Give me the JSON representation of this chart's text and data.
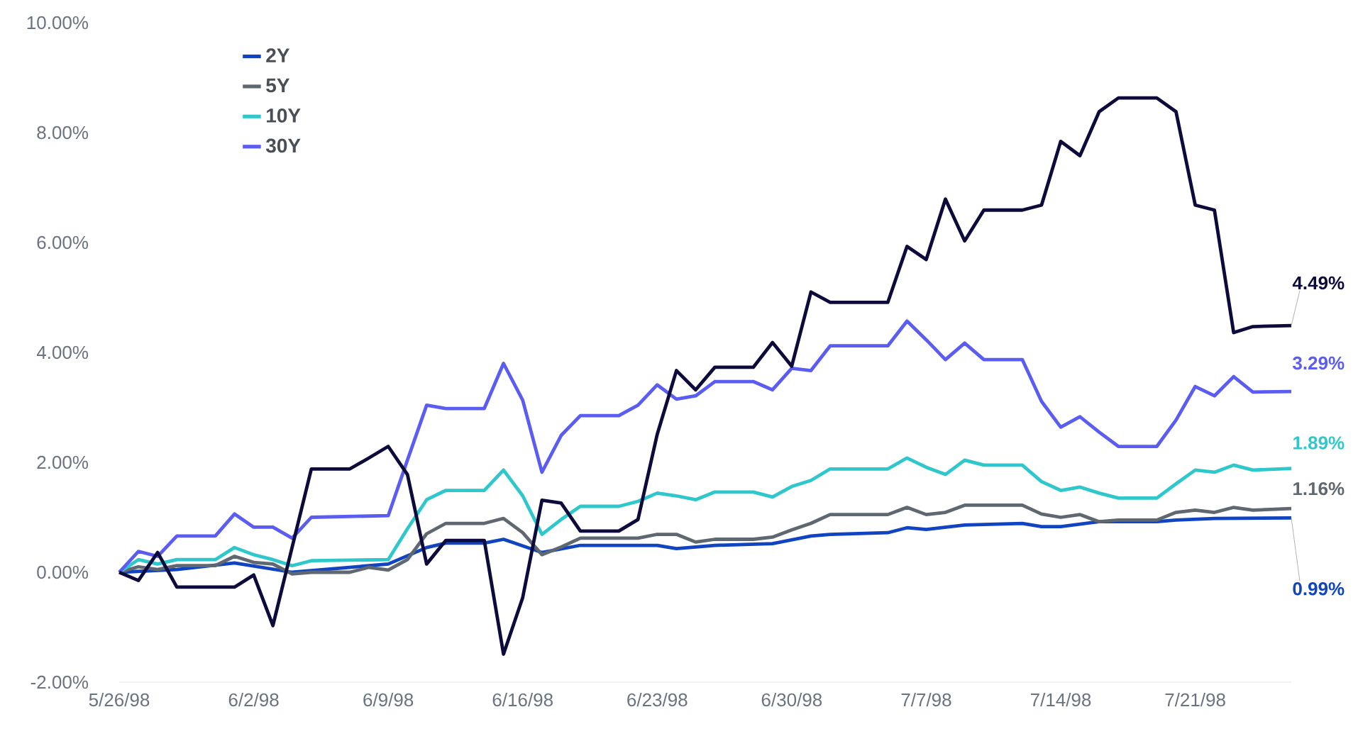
{
  "chart_data": {
    "type": "line",
    "xlim": [
      "1998-05-26",
      "1998-07-26"
    ],
    "xticks": [
      {
        "value": "1998-05-26",
        "label": "5/26/98"
      },
      {
        "value": "1998-06-02",
        "label": "6/2/98"
      },
      {
        "value": "1998-06-09",
        "label": "6/9/98"
      },
      {
        "value": "1998-06-16",
        "label": "6/16/98"
      },
      {
        "value": "1998-06-23",
        "label": "6/23/98"
      },
      {
        "value": "1998-06-30",
        "label": "6/30/98"
      },
      {
        "value": "1998-07-07",
        "label": "7/7/98"
      },
      {
        "value": "1998-07-14",
        "label": "7/14/98"
      },
      {
        "value": "1998-07-21",
        "label": "7/21/98"
      }
    ],
    "ylim": [
      -2,
      10
    ],
    "yticks": [
      {
        "value": -2,
        "label": "-2.00%"
      },
      {
        "value": 0,
        "label": "0.00%"
      },
      {
        "value": 2,
        "label": "2.00%"
      },
      {
        "value": 4,
        "label": "4.00%"
      },
      {
        "value": 6,
        "label": "6.00%"
      },
      {
        "value": 8,
        "label": "8.00%"
      },
      {
        "value": 10,
        "label": "10.00%"
      }
    ],
    "legend": "top left",
    "series": [
      {
        "name": "2Y",
        "color": "#1044c0",
        "x": [
          "1998-05-26",
          "1998-05-29",
          "1998-06-01",
          "1998-06-04",
          "1998-06-09",
          "1998-06-11",
          "1998-06-12",
          "1998-06-14",
          "1998-06-15",
          "1998-06-17",
          "1998-06-19",
          "1998-06-23",
          "1998-06-24",
          "1998-06-26",
          "1998-06-29",
          "1998-07-01",
          "1998-07-02",
          "1998-07-05",
          "1998-07-06",
          "1998-07-07",
          "1998-07-09",
          "1998-07-12",
          "1998-07-13",
          "1998-07-14",
          "1998-07-16",
          "1998-07-19",
          "1998-07-20",
          "1998-07-22",
          "1998-07-26"
        ],
        "values": [
          0,
          0.05,
          0.17,
          0,
          0.15,
          0.45,
          0.53,
          0.53,
          0.6,
          0.36,
          0.49,
          0.49,
          0.43,
          0.49,
          0.52,
          0.66,
          0.69,
          0.72,
          0.81,
          0.78,
          0.86,
          0.89,
          0.83,
          0.83,
          0.92,
          0.92,
          0.95,
          0.98,
          0.99
        ],
        "value_labels": [
          null,
          null,
          null,
          null,
          null,
          null,
          null,
          null,
          null,
          null,
          null,
          null,
          null,
          null,
          null,
          null,
          null,
          null,
          null,
          null,
          null,
          null,
          null,
          null,
          null,
          null,
          null,
          null,
          "0.99%"
        ]
      },
      {
        "name": "5Y",
        "color": "#5f6770",
        "x": [
          "1998-05-26",
          "1998-05-27",
          "1998-05-28",
          "1998-05-29",
          "1998-05-31",
          "1998-06-01",
          "1998-06-02",
          "1998-06-03",
          "1998-06-04",
          "1998-06-05",
          "1998-06-07",
          "1998-06-08",
          "1998-06-09",
          "1998-06-10",
          "1998-06-11",
          "1998-06-12",
          "1998-06-14",
          "1998-06-15",
          "1998-06-16",
          "1998-06-17",
          "1998-06-18",
          "1998-06-19",
          "1998-06-22",
          "1998-06-23",
          "1998-06-24",
          "1998-06-25",
          "1998-06-26",
          "1998-06-28",
          "1998-06-29",
          "1998-06-30",
          "1998-07-01",
          "1998-07-02",
          "1998-07-05",
          "1998-07-06",
          "1998-07-07",
          "1998-07-08",
          "1998-07-09",
          "1998-07-12",
          "1998-07-13",
          "1998-07-14",
          "1998-07-15",
          "1998-07-16",
          "1998-07-17",
          "1998-07-19",
          "1998-07-20",
          "1998-07-21",
          "1998-07-22",
          "1998-07-23",
          "1998-07-24",
          "1998-07-26"
        ],
        "values": [
          0,
          0.1,
          0.05,
          0.12,
          0.12,
          0.29,
          0.18,
          0.15,
          -0.03,
          0,
          0,
          0.09,
          0.04,
          0.23,
          0.7,
          0.89,
          0.89,
          0.98,
          0.72,
          0.32,
          0.46,
          0.62,
          0.62,
          0.69,
          0.69,
          0.55,
          0.6,
          0.6,
          0.64,
          0.77,
          0.89,
          1.05,
          1.05,
          1.18,
          1.05,
          1.09,
          1.22,
          1.22,
          1.06,
          1.0,
          1.05,
          0.92,
          0.95,
          0.95,
          1.09,
          1.13,
          1.09,
          1.18,
          1.13,
          1.16
        ],
        "value_labels": [
          null,
          null,
          null,
          null,
          null,
          null,
          null,
          null,
          null,
          null,
          null,
          null,
          null,
          null,
          null,
          null,
          null,
          null,
          null,
          null,
          null,
          null,
          null,
          null,
          null,
          null,
          null,
          null,
          null,
          null,
          null,
          null,
          null,
          null,
          null,
          null,
          null,
          null,
          null,
          null,
          null,
          null,
          null,
          null,
          null,
          null,
          null,
          null,
          null,
          "1.16%"
        ]
      },
      {
        "name": "10Y",
        "color": "#2ec8cc",
        "x": [
          "1998-05-26",
          "1998-05-27",
          "1998-05-28",
          "1998-05-29",
          "1998-05-31",
          "1998-06-01",
          "1998-06-02",
          "1998-06-03",
          "1998-06-04",
          "1998-06-05",
          "1998-06-09",
          "1998-06-10",
          "1998-06-11",
          "1998-06-12",
          "1998-06-14",
          "1998-06-15",
          "1998-06-16",
          "1998-06-17",
          "1998-06-18",
          "1998-06-19",
          "1998-06-21",
          "1998-06-22",
          "1998-06-23",
          "1998-06-24",
          "1998-06-25",
          "1998-06-26",
          "1998-06-28",
          "1998-06-29",
          "1998-06-30",
          "1998-07-01",
          "1998-07-02",
          "1998-07-05",
          "1998-07-06",
          "1998-07-07",
          "1998-07-08",
          "1998-07-09",
          "1998-07-10",
          "1998-07-12",
          "1998-07-13",
          "1998-07-14",
          "1998-07-15",
          "1998-07-16",
          "1998-07-17",
          "1998-07-19",
          "1998-07-20",
          "1998-07-21",
          "1998-07-22",
          "1998-07-23",
          "1998-07-24",
          "1998-07-26"
        ],
        "values": [
          0,
          0.23,
          0.15,
          0.23,
          0.23,
          0.45,
          0.32,
          0.23,
          0.12,
          0.21,
          0.23,
          0.79,
          1.32,
          1.49,
          1.49,
          1.86,
          1.39,
          0.69,
          0.96,
          1.2,
          1.2,
          1.29,
          1.44,
          1.39,
          1.32,
          1.46,
          1.46,
          1.37,
          1.56,
          1.67,
          1.88,
          1.88,
          2.08,
          1.91,
          1.78,
          2.04,
          1.95,
          1.95,
          1.65,
          1.49,
          1.55,
          1.44,
          1.35,
          1.35,
          1.61,
          1.86,
          1.82,
          1.95,
          1.86,
          1.89
        ],
        "value_labels": [
          null,
          null,
          null,
          null,
          null,
          null,
          null,
          null,
          null,
          null,
          null,
          null,
          null,
          null,
          null,
          null,
          null,
          null,
          null,
          null,
          null,
          null,
          null,
          null,
          null,
          null,
          null,
          null,
          null,
          null,
          null,
          null,
          null,
          null,
          null,
          null,
          null,
          null,
          null,
          null,
          null,
          null,
          null,
          null,
          null,
          null,
          null,
          null,
          null,
          "1.89%"
        ]
      },
      {
        "name": "30Y",
        "color": "#5a5cf2",
        "x": [
          "1998-05-26",
          "1998-05-27",
          "1998-05-28",
          "1998-05-29",
          "1998-05-31",
          "1998-06-01",
          "1998-06-02",
          "1998-06-03",
          "1998-06-04",
          "1998-06-05",
          "1998-06-09",
          "1998-06-10",
          "1998-06-11",
          "1998-06-12",
          "1998-06-14",
          "1998-06-15",
          "1998-06-16",
          "1998-06-17",
          "1998-06-18",
          "1998-06-19",
          "1998-06-21",
          "1998-06-22",
          "1998-06-23",
          "1998-06-24",
          "1998-06-25",
          "1998-06-26",
          "1998-06-28",
          "1998-06-29",
          "1998-06-30",
          "1998-07-01",
          "1998-07-02",
          "1998-07-05",
          "1998-07-06",
          "1998-07-07",
          "1998-07-08",
          "1998-07-09",
          "1998-07-10",
          "1998-07-12",
          "1998-07-13",
          "1998-07-14",
          "1998-07-15",
          "1998-07-16",
          "1998-07-17",
          "1998-07-19",
          "1998-07-20",
          "1998-07-21",
          "1998-07-22",
          "1998-07-23",
          "1998-07-24",
          "1998-07-26"
        ],
        "values": [
          0,
          0.38,
          0.29,
          0.66,
          0.66,
          1.06,
          0.82,
          0.82,
          0.62,
          1.0,
          1.03,
          2.04,
          3.04,
          2.98,
          2.98,
          3.8,
          3.13,
          1.82,
          2.49,
          2.85,
          2.85,
          3.04,
          3.41,
          3.15,
          3.21,
          3.47,
          3.47,
          3.32,
          3.71,
          3.67,
          4.12,
          4.12,
          4.57,
          4.23,
          3.87,
          4.17,
          3.87,
          3.87,
          3.11,
          2.64,
          2.83,
          2.55,
          2.29,
          2.29,
          2.77,
          3.38,
          3.21,
          3.56,
          3.28,
          3.29
        ],
        "value_labels": [
          null,
          null,
          null,
          null,
          null,
          null,
          null,
          null,
          null,
          null,
          null,
          null,
          null,
          null,
          null,
          null,
          null,
          null,
          null,
          null,
          null,
          null,
          null,
          null,
          null,
          null,
          null,
          null,
          null,
          null,
          null,
          null,
          null,
          null,
          null,
          null,
          null,
          null,
          null,
          null,
          null,
          null,
          null,
          null,
          null,
          null,
          null,
          null,
          null,
          "3.29%"
        ]
      },
      {
        "color": "#0c0b3c",
        "x": [
          "1998-05-26",
          "1998-05-27",
          "1998-05-28",
          "1998-05-29",
          "1998-06-01",
          "1998-06-02",
          "1998-06-03",
          "1998-06-05",
          "1998-06-07",
          "1998-06-08",
          "1998-06-09",
          "1998-06-10",
          "1998-06-11",
          "1998-06-12",
          "1998-06-14",
          "1998-06-15",
          "1998-06-16",
          "1998-06-17",
          "1998-06-18",
          "1998-06-19",
          "1998-06-21",
          "1998-06-22",
          "1998-06-23",
          "1998-06-24",
          "1998-06-25",
          "1998-06-26",
          "1998-06-28",
          "1998-06-29",
          "1998-06-30",
          "1998-07-01",
          "1998-07-02",
          "1998-07-05",
          "1998-07-06",
          "1998-07-07",
          "1998-07-08",
          "1998-07-09",
          "1998-07-10",
          "1998-07-12",
          "1998-07-13",
          "1998-07-14",
          "1998-07-15",
          "1998-07-16",
          "1998-07-17",
          "1998-07-19",
          "1998-07-20",
          "1998-07-21",
          "1998-07-22",
          "1998-07-23",
          "1998-07-24",
          "1998-07-26"
        ],
        "values": [
          0,
          -0.15,
          0.36,
          -0.27,
          -0.27,
          -0.05,
          -0.97,
          1.88,
          1.88,
          2.08,
          2.29,
          1.78,
          0.15,
          0.58,
          0.58,
          -1.49,
          -0.46,
          1.31,
          1.26,
          0.75,
          0.75,
          0.96,
          2.51,
          3.67,
          3.32,
          3.73,
          3.73,
          4.18,
          3.75,
          5.1,
          4.91,
          4.91,
          5.93,
          5.69,
          6.79,
          6.03,
          6.59,
          6.59,
          6.68,
          7.84,
          7.58,
          8.38,
          8.63,
          8.63,
          8.38,
          6.68,
          6.59,
          4.36,
          4.47,
          4.49
        ],
        "value_labels": [
          null,
          null,
          null,
          null,
          null,
          null,
          null,
          null,
          null,
          null,
          null,
          null,
          null,
          null,
          null,
          null,
          null,
          null,
          null,
          null,
          null,
          null,
          null,
          null,
          null,
          null,
          null,
          null,
          null,
          null,
          null,
          null,
          null,
          null,
          null,
          null,
          null,
          null,
          null,
          null,
          null,
          null,
          null,
          null,
          null,
          null,
          null,
          null,
          null,
          "4.49%"
        ]
      }
    ]
  }
}
